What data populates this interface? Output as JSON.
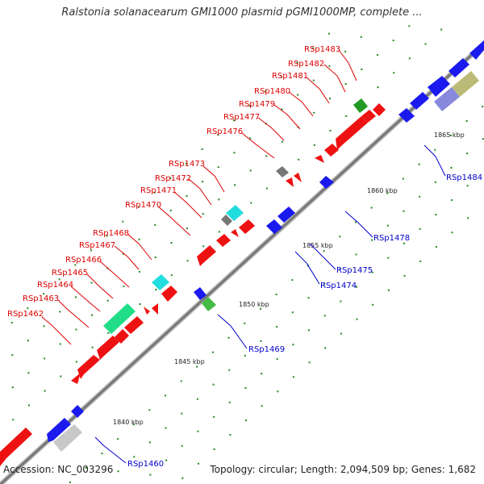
{
  "title": "Ralstonia solanacearum GMI1000 plasmid pGMI1000MP, complete ...",
  "footer": {
    "accession": "Accession: NC_003296",
    "summary": "Topology: circular; Length: 2,094,509 bp; Genes: 1,682"
  },
  "scale_labels": [
    "1840 kbp",
    "1845 kbp",
    "1850 kbp",
    "1855 kbp",
    "1860 kbp",
    "1865 kbp"
  ],
  "gene_labels": [
    {
      "text": "RSp1462",
      "strand": "forward"
    },
    {
      "text": "RSp1463",
      "strand": "forward"
    },
    {
      "text": "RSp1464",
      "strand": "forward"
    },
    {
      "text": "RSp1465",
      "strand": "forward"
    },
    {
      "text": "RSp1466",
      "strand": "forward"
    },
    {
      "text": "RSp1467",
      "strand": "forward"
    },
    {
      "text": "RSp1468",
      "strand": "forward"
    },
    {
      "text": "RSp1470",
      "strand": "forward"
    },
    {
      "text": "RSp1471",
      "strand": "forward"
    },
    {
      "text": "RSp1472",
      "strand": "forward"
    },
    {
      "text": "RSp1473",
      "strand": "forward"
    },
    {
      "text": "RSp1476",
      "strand": "forward"
    },
    {
      "text": "RSp1477",
      "strand": "forward"
    },
    {
      "text": "RSp1479",
      "strand": "forward"
    },
    {
      "text": "RSp1480",
      "strand": "forward"
    },
    {
      "text": "RSp1481",
      "strand": "forward"
    },
    {
      "text": "RSp1482",
      "strand": "forward"
    },
    {
      "text": "RSp1483",
      "strand": "forward"
    },
    {
      "text": "RSp1460",
      "strand": "reverse"
    },
    {
      "text": "RSp1469",
      "strand": "reverse"
    },
    {
      "text": "RSp1474",
      "strand": "reverse"
    },
    {
      "text": "RSp1475",
      "strand": "reverse"
    },
    {
      "text": "RSp1478",
      "strand": "reverse"
    },
    {
      "text": "RSp1484",
      "strand": "reverse"
    }
  ],
  "colors": {
    "forward_label": "#dd0000",
    "reverse_label": "#0000cc",
    "forward_gene": "#ee1111",
    "reverse_gene": "#1a1aee",
    "backbone": "#888888",
    "tick": "#228822"
  }
}
